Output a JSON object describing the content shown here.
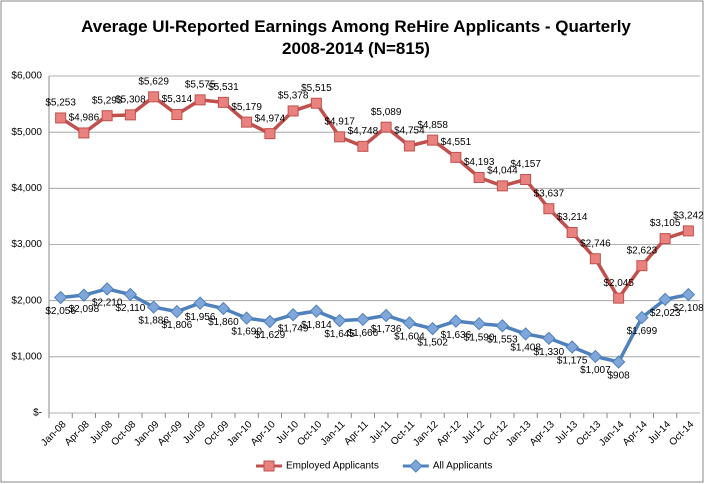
{
  "chart_data": {
    "type": "line",
    "title": "Average UI-Reported Earnings Among ReHire Applicants - Quarterly 2008-2014 (N=815)",
    "categories": [
      "Jan-08",
      "Apr-08",
      "Jul-08",
      "Oct-08",
      "Jan-09",
      "Apr-09",
      "Jul-09",
      "Oct-09",
      "Jan-10",
      "Apr-10",
      "Jul-10",
      "Oct-10",
      "Jan-11",
      "Apr-11",
      "Jul-11",
      "Oct-11",
      "Jan-12",
      "Apr-12",
      "Jul-12",
      "Oct-12",
      "Jan-13",
      "Apr-13",
      "Jul-13",
      "Oct-13",
      "Jan-14",
      "Apr-14",
      "Jul-14",
      "Oct-14"
    ],
    "series": [
      {
        "name": "Employed Applicants",
        "color": "#c0504d",
        "values": [
          5253,
          4986,
          5293,
          5308,
          5629,
          5314,
          5575,
          5531,
          5179,
          4974,
          5378,
          5515,
          4917,
          4748,
          5089,
          4754,
          4858,
          4551,
          4193,
          4044,
          4157,
          3637,
          3214,
          2746,
          2045,
          2623,
          3105,
          3242
        ],
        "value_labels": [
          "$5,253",
          "$4,986",
          "$5,293",
          "$5,308",
          "$5,629",
          "$5,314",
          "$5,575",
          "$5,531",
          "$5,179",
          "$4,974",
          "$5,378",
          "$5,515",
          "$4,917",
          "$4,748",
          "$5,089",
          "$4,754",
          "$4,858",
          "$4,551",
          "$4,193",
          "$4,044",
          "$4,157",
          "$3,637",
          "$3,214",
          "$2,746",
          "$2,045",
          "$2,623",
          "$3,105",
          "$3,242"
        ]
      },
      {
        "name": "All Applicants",
        "color": "#4f81bd",
        "values": [
          2056,
          2098,
          2210,
          2110,
          1886,
          1806,
          1956,
          1860,
          1690,
          1629,
          1749,
          1814,
          1645,
          1666,
          1736,
          1604,
          1502,
          1636,
          1590,
          1553,
          1408,
          1330,
          1175,
          1007,
          908,
          1699,
          2023,
          2108
        ],
        "value_labels": [
          "$2,056",
          "$2,098",
          "$2,210",
          "$2,110",
          "$1,886",
          "$1,806",
          "$1,956",
          "$1,860",
          "$1,690",
          "$1,629",
          "$1,749",
          "$1,814",
          "$1,645",
          "$1,666",
          "$1,736",
          "$1,604",
          "$1,502",
          "$1,636",
          "$1,590",
          "$1,553",
          "$1,408",
          "$1,330",
          "$1,175",
          "$1,007",
          "$908",
          "$1,699",
          "$2,023",
          "$2,108"
        ]
      }
    ],
    "ylim": [
      0,
      6000
    ],
    "yticks": [
      {
        "value": 0,
        "label": "$-"
      },
      {
        "value": 1000,
        "label": "$1,000"
      },
      {
        "value": 2000,
        "label": "$2,000"
      },
      {
        "value": 3000,
        "label": "$3,000"
      },
      {
        "value": 4000,
        "label": "$4,000"
      },
      {
        "value": 5000,
        "label": "$5,000"
      },
      {
        "value": 6000,
        "label": "$6,000"
      }
    ],
    "grid": true,
    "legend": "bottom"
  }
}
